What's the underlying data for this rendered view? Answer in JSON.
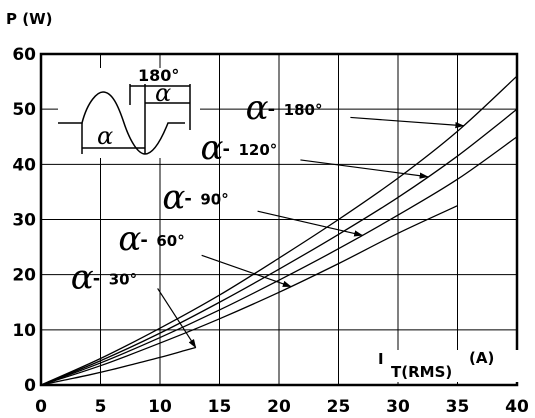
{
  "chart_data": {
    "type": "line",
    "ylabel": "P (W)",
    "xlabel_main": "I",
    "xlabel_sub": "T(RMS)",
    "xlabel_unit": "(A)",
    "xlim": [
      0,
      40
    ],
    "ylim": [
      0,
      60
    ],
    "xticks": [
      0,
      5,
      10,
      15,
      20,
      25,
      30,
      35,
      40
    ],
    "yticks": [
      0,
      10,
      20,
      30,
      40,
      50,
      60
    ],
    "grid": true,
    "series": [
      {
        "name": "30°",
        "x": [
          0,
          2,
          4,
          6,
          8,
          10,
          12,
          13
        ],
        "y": [
          0,
          0.9,
          1.8,
          2.8,
          3.9,
          5.0,
          6.2,
          6.8
        ]
      },
      {
        "name": "60°",
        "x": [
          0,
          5,
          10,
          15,
          20,
          25,
          30,
          35
        ],
        "y": [
          0,
          3.5,
          7.6,
          12.0,
          16.8,
          22.0,
          27.5,
          32.5
        ]
      },
      {
        "name": "90°",
        "x": [
          0,
          5,
          10,
          15,
          20,
          25,
          30,
          35,
          40
        ],
        "y": [
          0,
          4.0,
          8.6,
          13.6,
          19.0,
          24.7,
          30.8,
          37.3,
          45.0
        ]
      },
      {
        "name": "120°",
        "x": [
          0,
          5,
          10,
          15,
          20,
          25,
          30,
          35,
          40
        ],
        "y": [
          0,
          4.4,
          9.4,
          15.0,
          21.0,
          27.3,
          34.0,
          41.5,
          50.0
        ]
      },
      {
        "name": "180°",
        "x": [
          0,
          5,
          10,
          15,
          20,
          25,
          30,
          35,
          40
        ],
        "y": [
          0,
          4.8,
          10.3,
          16.3,
          23.0,
          30.0,
          37.5,
          46.0,
          56.0
        ]
      }
    ],
    "annotations": [
      {
        "symbol": "α",
        "dash": "-",
        "value": "30°"
      },
      {
        "symbol": "α",
        "dash": "-",
        "value": "60°"
      },
      {
        "symbol": "α",
        "dash": "-",
        "value": "90°"
      },
      {
        "symbol": "α",
        "dash": "-",
        "value": "120°"
      },
      {
        "symbol": "α",
        "dash": "-",
        "value": "180°"
      }
    ],
    "inset": {
      "labels": [
        "180°",
        "α",
        "α"
      ]
    }
  }
}
